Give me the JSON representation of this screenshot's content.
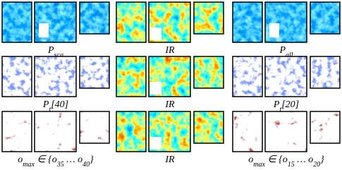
{
  "rows": [
    {
      "labels": [
        [
          {
            "text": "P",
            "sub": "sca"
          }
        ],
        [
          {
            "text": "IR"
          }
        ],
        [
          {
            "text": "P",
            "sub": "all"
          }
        ]
      ]
    },
    {
      "labels": [
        [
          {
            "text": "P",
            "sub": "t"
          },
          {
            "text": "[40]"
          }
        ],
        [
          {
            "text": "IR"
          }
        ],
        [
          {
            "text": "P",
            "sub": "t"
          },
          {
            "text": "[20]"
          }
        ]
      ]
    },
    {
      "labels": [
        [
          {
            "text": "o",
            "sub": "max"
          },
          {
            "text": " ∈ {o",
            "sub": "35"
          },
          {
            "text": " … o",
            "sub": "40"
          },
          {
            "text": "}"
          }
        ],
        [
          {
            "text": "IR"
          }
        ],
        [
          {
            "text": "o",
            "sub": "max"
          },
          {
            "text": " ∈ {o",
            "sub": "15"
          },
          {
            "text": " … o",
            "sub": "20"
          },
          {
            "text": "}"
          }
        ]
      ]
    }
  ]
}
